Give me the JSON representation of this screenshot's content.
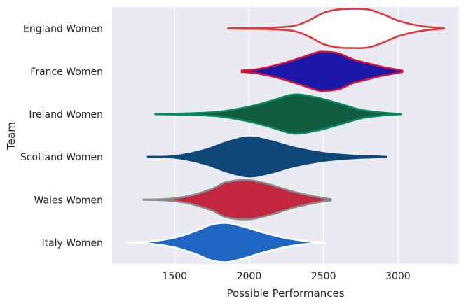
{
  "chart_data": {
    "type": "violin",
    "orientation": "horizontal",
    "title": "",
    "xlabel": "Possible Performances",
    "ylabel": "Team",
    "xlim": [
      1080,
      3410
    ],
    "xticks": [
      1500,
      2000,
      2500,
      3000
    ],
    "grid": true,
    "background": "#eaeaf2",
    "series": [
      {
        "name": "England Women",
        "fill": "#ffffff",
        "edge": "#e03a3e",
        "range": [
          1860,
          3310
        ],
        "profile": [
          [
            1860,
            0.01
          ],
          [
            2000,
            0.02
          ],
          [
            2150,
            0.04
          ],
          [
            2300,
            0.13
          ],
          [
            2400,
            0.4
          ],
          [
            2500,
            0.8
          ],
          [
            2600,
            0.97
          ],
          [
            2700,
            1.0
          ],
          [
            2800,
            0.97
          ],
          [
            2900,
            0.72
          ],
          [
            3000,
            0.4
          ],
          [
            3100,
            0.2
          ],
          [
            3200,
            0.08
          ],
          [
            3310,
            0.01
          ]
        ]
      },
      {
        "name": "France Women",
        "fill": "#1b17a8",
        "edge": "#d6123c",
        "range": [
          1950,
          3030
        ],
        "profile": [
          [
            1950,
            0.04
          ],
          [
            2050,
            0.1
          ],
          [
            2200,
            0.35
          ],
          [
            2350,
            0.7
          ],
          [
            2450,
            0.95
          ],
          [
            2500,
            1.0
          ],
          [
            2600,
            0.92
          ],
          [
            2700,
            0.6
          ],
          [
            2800,
            0.4
          ],
          [
            2900,
            0.22
          ],
          [
            3030,
            0.04
          ]
        ]
      },
      {
        "name": "Ireland Women",
        "fill": "#0f5c3e",
        "edge": "#0a8a5c",
        "range": [
          1370,
          3020
        ],
        "profile": [
          [
            1370,
            0.01
          ],
          [
            1600,
            0.04
          ],
          [
            1800,
            0.12
          ],
          [
            2000,
            0.38
          ],
          [
            2150,
            0.68
          ],
          [
            2300,
            1.0
          ],
          [
            2450,
            0.85
          ],
          [
            2600,
            0.55
          ],
          [
            2750,
            0.22
          ],
          [
            2900,
            0.07
          ],
          [
            3020,
            0.01
          ]
        ]
      },
      {
        "name": "Scotland Women",
        "fill": "#0e4778",
        "edge": "#0e4778",
        "range": [
          1320,
          2920
        ],
        "profile": [
          [
            1320,
            0.01
          ],
          [
            1500,
            0.04
          ],
          [
            1700,
            0.35
          ],
          [
            1850,
            0.75
          ],
          [
            2000,
            1.0
          ],
          [
            2150,
            0.8
          ],
          [
            2300,
            0.48
          ],
          [
            2500,
            0.2
          ],
          [
            2700,
            0.07
          ],
          [
            2920,
            0.01
          ]
        ]
      },
      {
        "name": "Wales Women",
        "fill": "#c2273f",
        "edge": "#8a8a8a",
        "range": [
          1290,
          2550
        ],
        "profile": [
          [
            1290,
            0.01
          ],
          [
            1450,
            0.04
          ],
          [
            1600,
            0.2
          ],
          [
            1750,
            0.55
          ],
          [
            1850,
            0.9
          ],
          [
            2000,
            1.0
          ],
          [
            2150,
            0.75
          ],
          [
            2300,
            0.4
          ],
          [
            2450,
            0.15
          ],
          [
            2550,
            0.03
          ]
        ]
      },
      {
        "name": "Italy Women",
        "fill": "#1e66c2",
        "edge": "#ffffff",
        "range": [
          1180,
          2510
        ],
        "profile": [
          [
            1180,
            0.01
          ],
          [
            1300,
            0.03
          ],
          [
            1500,
            0.25
          ],
          [
            1650,
            0.62
          ],
          [
            1750,
            0.92
          ],
          [
            1850,
            1.0
          ],
          [
            1950,
            0.84
          ],
          [
            2100,
            0.5
          ],
          [
            2250,
            0.22
          ],
          [
            2400,
            0.06
          ],
          [
            2510,
            0.01
          ]
        ]
      }
    ]
  }
}
